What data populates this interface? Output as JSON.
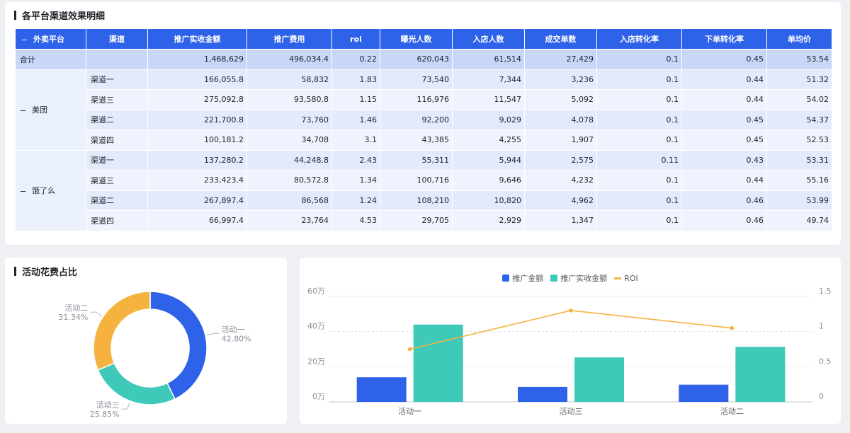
{
  "table": {
    "title": "各平台渠道效果明细",
    "headers": [
      "外卖平台",
      "渠道",
      "推广实收金额",
      "推广费用",
      "roi",
      "曝光人数",
      "入店人数",
      "成交单数",
      "入店转化率",
      "下单转化率",
      "单均价"
    ],
    "total": {
      "label": "合计",
      "values": [
        "1,468,629",
        "496,034.4",
        "0.22",
        "620,043",
        "61,514",
        "27,429",
        "0.1",
        "0.45",
        "53.54"
      ]
    },
    "groups": [
      {
        "name": "美团",
        "rows": [
          {
            "channel": "渠道一",
            "values": [
              "166,055.8",
              "58,832",
              "1.83",
              "73,540",
              "7,344",
              "3,236",
              "0.1",
              "0.44",
              "51.32"
            ]
          },
          {
            "channel": "渠道三",
            "values": [
              "275,092.8",
              "93,580.8",
              "1.15",
              "116,976",
              "11,547",
              "5,092",
              "0.1",
              "0.44",
              "54.02"
            ]
          },
          {
            "channel": "渠道二",
            "values": [
              "221,700.8",
              "73,760",
              "1.46",
              "92,200",
              "9,029",
              "4,078",
              "0.1",
              "0.45",
              "54.37"
            ]
          },
          {
            "channel": "渠道四",
            "values": [
              "100,181.2",
              "34,708",
              "3.1",
              "43,385",
              "4,255",
              "1,907",
              "0.1",
              "0.45",
              "52.53"
            ]
          }
        ]
      },
      {
        "name": "饿了么",
        "rows": [
          {
            "channel": "渠道一",
            "values": [
              "137,280.2",
              "44,248.8",
              "2.43",
              "55,311",
              "5,944",
              "2,575",
              "0.11",
              "0.43",
              "53.31"
            ]
          },
          {
            "channel": "渠道三",
            "values": [
              "233,423.4",
              "80,572.8",
              "1.34",
              "100,716",
              "9,646",
              "4,232",
              "0.1",
              "0.44",
              "55.16"
            ]
          },
          {
            "channel": "渠道二",
            "values": [
              "267,897.4",
              "86,568",
              "1.24",
              "108,210",
              "10,820",
              "4,962",
              "0.1",
              "0.46",
              "53.99"
            ]
          },
          {
            "channel": "渠道四",
            "values": [
              "66,997.4",
              "23,764",
              "4.53",
              "29,705",
              "2,929",
              "1,347",
              "0.1",
              "0.46",
              "49.74"
            ]
          }
        ]
      }
    ]
  },
  "donut": {
    "title": "活动花费占比",
    "slices": [
      {
        "name": "活动一",
        "pct_label": "42.80%",
        "value": 42.8,
        "color": "#2e62e8"
      },
      {
        "name": "活动三",
        "pct_label": "25.85%",
        "value": 25.85,
        "color": "#3ec9b8"
      },
      {
        "name": "活动二",
        "pct_label": "31.34%",
        "value": 31.34,
        "color": "#f6b23e"
      }
    ]
  },
  "chart_data": {
    "type": "bar",
    "categories": [
      "活动一",
      "活动三",
      "活动二"
    ],
    "series": [
      {
        "name": "推广金额",
        "kind": "bar",
        "axis": "left",
        "values": [
          140000,
          85000,
          98000
        ],
        "color": "#2e62e8"
      },
      {
        "name": "推广实收金额",
        "kind": "bar",
        "axis": "left",
        "values": [
          440000,
          253000,
          313000
        ],
        "color": "#3ec9b8"
      },
      {
        "name": "ROI",
        "kind": "line",
        "axis": "right",
        "values": [
          0.75,
          1.3,
          1.05
        ],
        "color": "#f6b23e"
      }
    ],
    "left_axis": {
      "ticks": [
        "0万",
        "20万",
        "40万",
        "60万"
      ],
      "values": [
        0,
        200000,
        400000,
        600000
      ]
    },
    "right_axis": {
      "ticks": [
        "0",
        "0.5",
        "1",
        "1.5"
      ],
      "values": [
        0,
        0.5,
        1,
        1.5
      ]
    },
    "legend_position": "top-center",
    "grid": true
  }
}
